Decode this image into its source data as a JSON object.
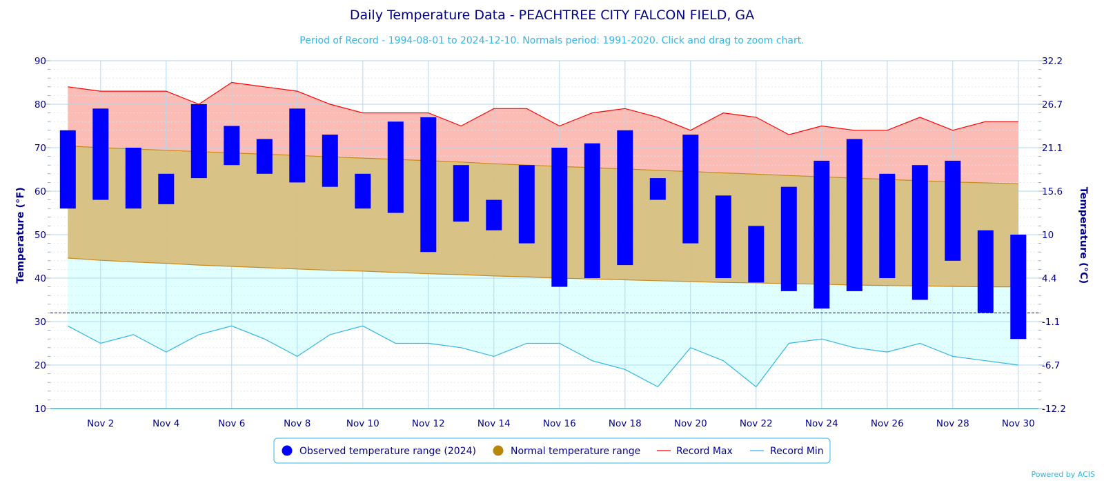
{
  "chart_data": {
    "type": "bar",
    "title": "Daily Temperature Data - PEACHTREE CITY FALCON FIELD, GA",
    "subtitle": "Period of Record - 1994-08-01 to 2024-12-10. Normals period: 1991-2020. Click and drag to zoom chart.",
    "ylabel_left": "Temperature (°F)",
    "ylabel_right": "Temperature (°C)",
    "ylim": [
      10,
      90
    ],
    "y_ticks": [
      "90",
      "80",
      "70",
      "60",
      "50",
      "40",
      "30",
      "20",
      "10"
    ],
    "y_ticks_values": [
      90,
      80,
      70,
      60,
      50,
      40,
      30,
      20,
      10
    ],
    "y2_ticks": [
      "32.2",
      "26.7",
      "21.1",
      "15.6",
      "10",
      "4.4",
      "-1.1",
      "-6.7",
      "-12.2"
    ],
    "x_tick_labels": [
      "Nov 2",
      "Nov 4",
      "Nov 6",
      "Nov 8",
      "Nov 10",
      "Nov 12",
      "Nov 14",
      "Nov 16",
      "Nov 18",
      "Nov 20",
      "Nov 22",
      "Nov 24",
      "Nov 26",
      "Nov 28",
      "Nov 30"
    ],
    "x_tick_days": [
      2,
      4,
      6,
      8,
      10,
      12,
      14,
      16,
      18,
      20,
      22,
      24,
      26,
      28,
      30
    ],
    "days": [
      1,
      2,
      3,
      4,
      5,
      6,
      7,
      8,
      9,
      10,
      11,
      12,
      13,
      14,
      15,
      16,
      17,
      18,
      19,
      20,
      21,
      22,
      23,
      24,
      25,
      26,
      27,
      28,
      29,
      30
    ],
    "freezing_line": 32,
    "grid": true,
    "legend_position": "bottom-center",
    "series": [
      {
        "name": "Observed temperature range (2024)",
        "type": "columnrange",
        "color": "#0000ff",
        "low": [
          56,
          58,
          56,
          57,
          63,
          66,
          64,
          62,
          61,
          56,
          55,
          46,
          53,
          51,
          48,
          38,
          40,
          43,
          58,
          48,
          40,
          39,
          37,
          33,
          37,
          40,
          35,
          44,
          32,
          26
        ],
        "high": [
          74,
          79,
          70,
          64,
          80,
          75,
          72,
          79,
          73,
          64,
          76,
          77,
          66,
          58,
          66,
          70,
          71,
          74,
          63,
          73,
          59,
          52,
          61,
          67,
          72,
          64,
          66,
          67,
          51,
          50
        ]
      },
      {
        "name": "Normal temperature range",
        "type": "arearange",
        "color": "#b8860b",
        "low": [
          44.6,
          44.1,
          43.7,
          43.4,
          43.0,
          42.7,
          42.4,
          42.1,
          41.8,
          41.6,
          41.3,
          41.0,
          40.8,
          40.5,
          40.3,
          40.0,
          39.8,
          39.6,
          39.4,
          39.2,
          39.0,
          38.9,
          38.7,
          38.6,
          38.4,
          38.3,
          38.2,
          38.1,
          38.0,
          38.0
        ],
        "high": [
          70.4,
          70.0,
          69.7,
          69.4,
          69.1,
          68.8,
          68.5,
          68.2,
          67.9,
          67.6,
          67.3,
          67.0,
          66.7,
          66.3,
          66.0,
          65.7,
          65.4,
          65.1,
          64.8,
          64.5,
          64.2,
          63.9,
          63.6,
          63.3,
          63.0,
          62.7,
          62.4,
          62.1,
          61.9,
          61.7
        ]
      },
      {
        "name": "Record Max",
        "type": "line",
        "color": "#ff0000",
        "values": [
          84,
          83,
          83,
          83,
          80,
          85,
          84,
          83,
          80,
          78,
          78,
          78,
          75,
          79,
          79,
          75,
          78,
          79,
          77,
          74,
          78,
          77,
          73,
          75,
          74,
          74,
          77,
          74,
          76,
          76
        ]
      },
      {
        "name": "Record Min",
        "type": "line",
        "color": "#33b5e5",
        "values": [
          29,
          25,
          27,
          23,
          27,
          29,
          26,
          22,
          27,
          29,
          25,
          25,
          24,
          22,
          25,
          25,
          21,
          19,
          15,
          24,
          21,
          15,
          25,
          26,
          24,
          23,
          25,
          22,
          21,
          20
        ]
      }
    ],
    "colors": {
      "record_band": "#fbbcb6",
      "normal_band": "#d6bf80",
      "cold_band": "#e0ffff",
      "normal_line": "#c98a1a",
      "grid": "#b0d8f0",
      "freeze": "#0000cc",
      "axis_text": "#00008b",
      "legend_border": "#33b5e5"
    },
    "credit": "Powered by ACIS"
  }
}
